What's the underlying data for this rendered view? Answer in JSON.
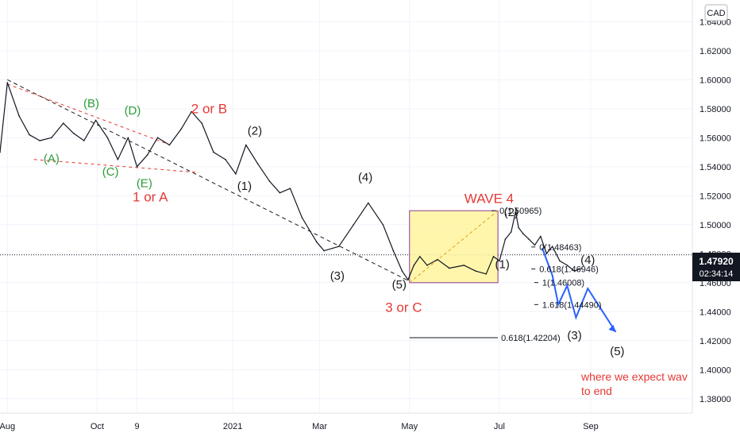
{
  "chart_data": {
    "type": "line",
    "currency": "CAD",
    "last_price": "1.47920",
    "countdown": "02:34:14",
    "y_ticks": [
      "1.64000",
      "1.62000",
      "1.60000",
      "1.58000",
      "1.56000",
      "1.54000",
      "1.52000",
      "1.50000",
      "1.48000",
      "1.46000",
      "1.44000",
      "1.42000",
      "1.40000",
      "1.38000"
    ],
    "y_tick_values": [
      1.64,
      1.62,
      1.6,
      1.58,
      1.56,
      1.54,
      1.52,
      1.5,
      1.48,
      1.46,
      1.44,
      1.42,
      1.4,
      1.38
    ],
    "x_ticks": [
      "Aug",
      "Oct",
      "9",
      "2021",
      "Mar",
      "May",
      "Jul",
      "Sep"
    ],
    "x_tick_values": [
      0,
      61,
      88,
      153,
      212,
      273,
      334,
      396
    ],
    "ylim": [
      1.37,
      1.655
    ],
    "xlim": [
      -5,
      465
    ],
    "series": [
      {
        "x": [
          -5,
          0,
          8,
          15,
          22,
          30,
          38,
          45,
          52,
          60,
          68,
          75,
          82,
          88,
          95,
          102,
          110,
          118,
          125,
          132,
          140,
          148,
          155,
          162,
          170,
          178,
          185,
          192,
          200,
          210,
          215,
          225,
          235,
          245,
          255,
          262,
          268,
          272,
          276,
          280,
          285,
          292,
          300,
          310,
          318,
          325,
          330,
          334,
          338,
          342,
          345,
          347,
          350,
          354,
          358,
          362,
          366,
          370,
          375,
          380,
          385,
          390
        ],
        "y": [
          1.55,
          1.598,
          1.575,
          1.562,
          1.558,
          1.56,
          1.57,
          1.563,
          1.558,
          1.572,
          1.56,
          1.545,
          1.56,
          1.54,
          1.548,
          1.56,
          1.555,
          1.566,
          1.578,
          1.57,
          1.55,
          1.545,
          1.535,
          1.555,
          1.542,
          1.53,
          1.522,
          1.525,
          1.505,
          1.488,
          1.482,
          1.485,
          1.5,
          1.515,
          1.5,
          1.482,
          1.468,
          1.462,
          1.472,
          1.478,
          1.472,
          1.476,
          1.47,
          1.472,
          1.468,
          1.466,
          1.478,
          1.475,
          1.49,
          1.495,
          1.509,
          1.498,
          1.494,
          1.49,
          1.486,
          1.492,
          1.48,
          1.485,
          1.475,
          1.472,
          1.468,
          1.47
        ]
      }
    ],
    "wave_labels": [
      {
        "text": "(A)",
        "x": 30,
        "y": 1.543,
        "color": "green"
      },
      {
        "text": "(B)",
        "x": 57,
        "y": 1.581,
        "color": "green"
      },
      {
        "text": "(C)",
        "x": 70,
        "y": 1.534,
        "color": "green"
      },
      {
        "text": "(D)",
        "x": 85,
        "y": 1.576,
        "color": "green"
      },
      {
        "text": "(E)",
        "x": 93,
        "y": 1.526,
        "color": "green"
      },
      {
        "text": "1 or A",
        "x": 97,
        "y": 1.516,
        "color": "red"
      },
      {
        "text": "2 or B",
        "x": 137,
        "y": 1.577,
        "color": "red"
      },
      {
        "text": "(2)",
        "x": 168,
        "y": 1.562,
        "color": "black"
      },
      {
        "text": "(1)",
        "x": 161,
        "y": 1.524,
        "color": "black"
      },
      {
        "text": "(3)",
        "x": 224,
        "y": 1.462,
        "color": "black"
      },
      {
        "text": "(4)",
        "x": 243,
        "y": 1.53,
        "color": "black"
      },
      {
        "text": "(5)",
        "x": 266,
        "y": 1.456,
        "color": "black"
      },
      {
        "text": "3 or C",
        "x": 269,
        "y": 1.44,
        "color": "red"
      },
      {
        "text": "WAVE 4",
        "x": 327,
        "y": 1.515,
        "color": "red"
      },
      {
        "text": "(2)",
        "x": 342,
        "y": 1.506,
        "color": "black"
      },
      {
        "text": "(1)",
        "x": 336,
        "y": 1.47,
        "color": "black"
      },
      {
        "text": "(4)",
        "x": 394,
        "y": 1.473,
        "color": "black"
      },
      {
        "text": "(3)",
        "x": 385,
        "y": 1.421,
        "color": "black"
      },
      {
        "text": "(5)",
        "x": 414,
        "y": 1.41,
        "color": "black"
      }
    ],
    "fib_levels": [
      {
        "text": "0(1.50965)",
        "value": 1.50965,
        "x": 333
      },
      {
        "text": "0(1.48463)",
        "value": 1.48463,
        "x": 360
      },
      {
        "text": "0.618(1.46946)",
        "value": 1.46946,
        "x": 360
      },
      {
        "text": "1(1.46008)",
        "value": 1.46008,
        "x": 362
      },
      {
        "text": "1.618(1.44490)",
        "value": 1.4449,
        "x": 362
      },
      {
        "text": "0.618(1.42204)",
        "value": 1.42204,
        "x": 333
      }
    ],
    "annotation": [
      "where we expect wav",
      "to end"
    ]
  }
}
